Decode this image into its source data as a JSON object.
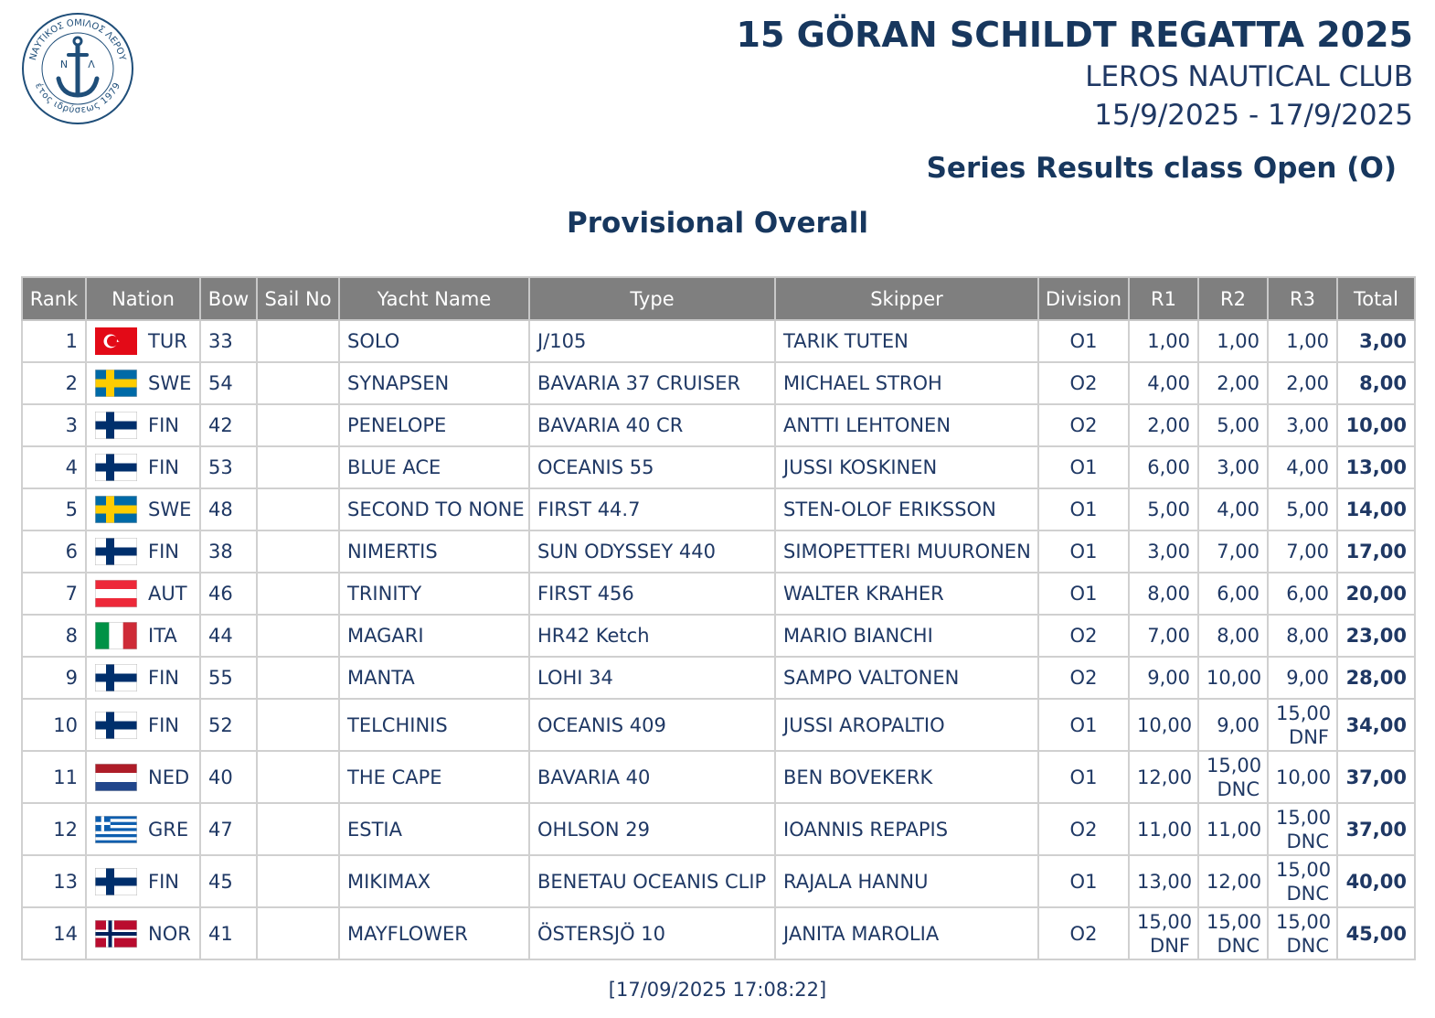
{
  "logo": {
    "ring_top": "ΝΑΥΤΙΚΟΣ ΟΜΙΛΟΣ ΛΕΡΟΥ",
    "ring_bottom": "έτος ιδρύσεως 1979",
    "left_letter": "Ν",
    "right_letter": "Λ"
  },
  "header": {
    "title": "15 GÖRAN SCHILDT REGATTA 2025",
    "club": "LEROS NAUTICAL CLUB",
    "dates": "15/9/2025 - 17/9/2025",
    "subtitle": "Series Results class Open (O)",
    "heading": "Provisional Overall"
  },
  "table": {
    "columns": [
      "Rank",
      "Nation",
      "Bow",
      "Sail No",
      "Yacht Name",
      "Type",
      "Skipper",
      "Division",
      "R1",
      "R2",
      "R3",
      "Total"
    ],
    "rows": [
      {
        "rank": "1",
        "nation": "TUR",
        "bow": "33",
        "yacht": "SOLO",
        "type": "J/105",
        "skipper": "TARIK TUTEN",
        "division": "O1",
        "r1": "1,00",
        "r2": "1,00",
        "r3": "1,00",
        "total": "3,00"
      },
      {
        "rank": "2",
        "nation": "SWE",
        "bow": "54",
        "yacht": "SYNAPSEN",
        "type": "BAVARIA 37 CRUISER",
        "skipper": "MICHAEL STROH",
        "division": "O2",
        "r1": "4,00",
        "r2": "2,00",
        "r3": "2,00",
        "total": "8,00"
      },
      {
        "rank": "3",
        "nation": "FIN",
        "bow": "42",
        "yacht": "PENELOPE",
        "type": "BAVARIA 40 CR",
        "skipper": "ANTTI LEHTONEN",
        "division": "O2",
        "r1": "2,00",
        "r2": "5,00",
        "r3": "3,00",
        "total": "10,00"
      },
      {
        "rank": "4",
        "nation": "FIN",
        "bow": "53",
        "yacht": "BLUE ACE",
        "type": "OCEANIS 55",
        "skipper": "JUSSI KOSKINEN",
        "division": "O1",
        "r1": "6,00",
        "r2": "3,00",
        "r3": "4,00",
        "total": "13,00"
      },
      {
        "rank": "5",
        "nation": "SWE",
        "bow": "48",
        "yacht": "SECOND TO NONE",
        "type": "FIRST 44.7",
        "skipper": "STEN-OLOF ERIKSSON",
        "division": "O1",
        "r1": "5,00",
        "r2": "4,00",
        "r3": "5,00",
        "total": "14,00"
      },
      {
        "rank": "6",
        "nation": "FIN",
        "bow": "38",
        "yacht": "NIMERTIS",
        "type": "SUN ODYSSEY 440",
        "skipper": "SIMOPETTERI MUURONEN",
        "division": "O1",
        "r1": "3,00",
        "r2": "7,00",
        "r3": "7,00",
        "total": "17,00"
      },
      {
        "rank": "7",
        "nation": "AUT",
        "bow": "46",
        "yacht": "TRINITY",
        "type": "FIRST 456",
        "skipper": "WALTER KRAHER",
        "division": "O1",
        "r1": "8,00",
        "r2": "6,00",
        "r3": "6,00",
        "total": "20,00"
      },
      {
        "rank": "8",
        "nation": "ITA",
        "bow": "44",
        "yacht": "MAGARI",
        "type": "HR42 Ketch",
        "skipper": "MARIO BIANCHI",
        "division": "O2",
        "r1": "7,00",
        "r2": "8,00",
        "r3": "8,00",
        "total": "23,00"
      },
      {
        "rank": "9",
        "nation": "FIN",
        "bow": "55",
        "yacht": "MANTA",
        "type": "LOHI 34",
        "skipper": "SAMPO VALTONEN",
        "division": "O2",
        "r1": "9,00",
        "r2": "10,00",
        "r3": "9,00",
        "total": "28,00"
      },
      {
        "rank": "10",
        "nation": "FIN",
        "bow": "52",
        "yacht": "TELCHINIS",
        "type": "OCEANIS 409",
        "skipper": "JUSSI AROPALTIO",
        "division": "O1",
        "r1": "10,00",
        "r2": "9,00",
        "r3": {
          "score": "15,00",
          "code": "DNF"
        },
        "total": "34,00"
      },
      {
        "rank": "11",
        "nation": "NED",
        "bow": "40",
        "yacht": "THE CAPE",
        "type": "BAVARIA 40",
        "skipper": "BEN BOVEKERK",
        "division": "O1",
        "r1": "12,00",
        "r2": {
          "score": "15,00",
          "code": "DNC"
        },
        "r3": "10,00",
        "total": "37,00"
      },
      {
        "rank": "12",
        "nation": "GRE",
        "bow": "47",
        "yacht": "ESTIA",
        "type": "OHLSON 29",
        "skipper": "IOANNIS REPAPIS",
        "division": "O2",
        "r1": "11,00",
        "r2": "11,00",
        "r3": {
          "score": "15,00",
          "code": "DNC"
        },
        "total": "37,00"
      },
      {
        "rank": "13",
        "nation": "FIN",
        "bow": "45",
        "yacht": "MIKIMAX",
        "type": "BENETAU OCEANIS CLIP",
        "skipper": "RAJALA HANNU",
        "division": "O1",
        "r1": "13,00",
        "r2": "12,00",
        "r3": {
          "score": "15,00",
          "code": "DNC"
        },
        "total": "40,00"
      },
      {
        "rank": "14",
        "nation": "NOR",
        "bow": "41",
        "yacht": "MAYFLOWER",
        "type": "ÖSTERSJÖ 10",
        "skipper": "JANITA MAROLIA",
        "division": "O2",
        "r1": {
          "score": "15,00",
          "code": "DNF"
        },
        "r2": {
          "score": "15,00",
          "code": "DNC"
        },
        "r3": {
          "score": "15,00",
          "code": "DNC"
        },
        "total": "45,00"
      }
    ]
  },
  "footer": {
    "timestamp": "[17/09/2025 17:08:22]"
  }
}
